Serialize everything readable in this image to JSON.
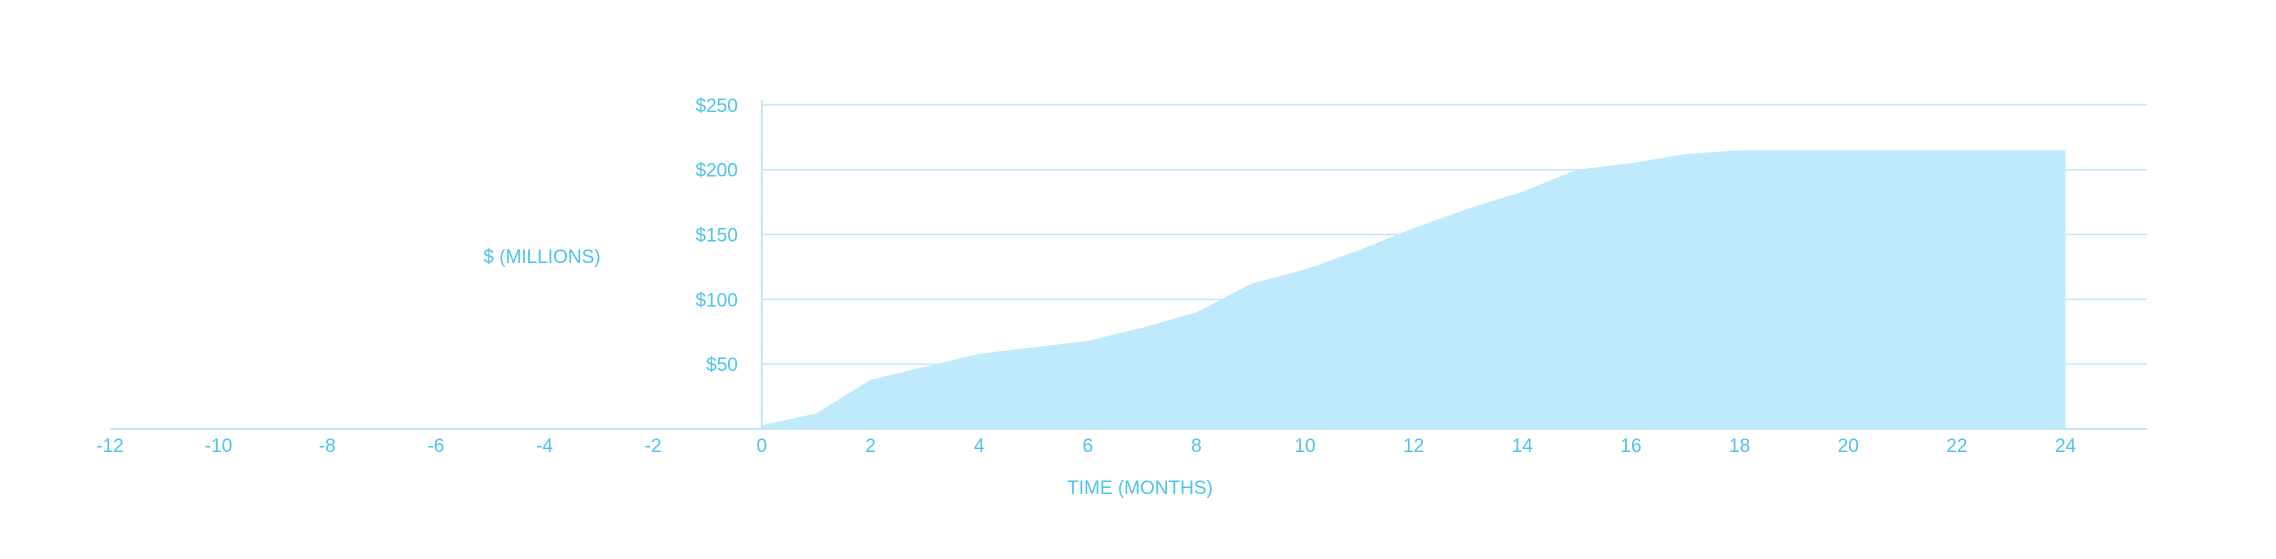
{
  "chart_data": {
    "type": "area",
    "title": "",
    "xlabel": "TIME (MONTHS)",
    "ylabel": "$ (MILLIONS)",
    "xlim": [
      -12,
      25.5
    ],
    "ylim": [
      0,
      270
    ],
    "x_ticks": [
      -12,
      -10,
      -8,
      -6,
      -4,
      -2,
      0,
      2,
      4,
      6,
      8,
      10,
      12,
      14,
      16,
      18,
      20,
      22,
      24
    ],
    "x_tick_labels": [
      "-12",
      "-10",
      "-8",
      "-6",
      "-4",
      "-2",
      "0",
      "2",
      "4",
      "6",
      "8",
      "10",
      "12",
      "14",
      "16",
      "18",
      "20",
      "22",
      "24"
    ],
    "y_ticks": [
      50,
      100,
      150,
      200,
      250
    ],
    "y_tick_labels": [
      "$50",
      "$100",
      "$150",
      "$200",
      "$250"
    ],
    "grid": true,
    "series": [
      {
        "x": [
          0,
          1,
          2,
          3,
          4,
          5,
          6,
          7,
          8,
          9,
          10,
          11,
          12,
          13,
          14,
          15,
          16,
          17,
          18,
          19,
          20,
          21,
          22,
          23,
          24
        ],
        "values": [
          3,
          12,
          38,
          48,
          58,
          63,
          68,
          78,
          90,
          112,
          123,
          138,
          155,
          170,
          183,
          200,
          205,
          212,
          215,
          215,
          215,
          215,
          215,
          215,
          215
        ]
      }
    ],
    "colors": {
      "fill": "#bfeafb",
      "text": "#4cc3ec",
      "lines": "#bfe8f7"
    }
  }
}
